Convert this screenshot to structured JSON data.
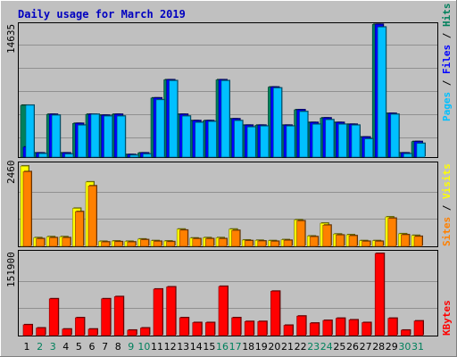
{
  "title": "Daily usage for March 2019",
  "colors": {
    "background": "#c0c0c0",
    "title": "#0000c0",
    "hits": "#00805c",
    "files": "#0000ff",
    "pages": "#00c0ff",
    "visits": "#ffff00",
    "sites": "#ff8000",
    "kbytes": "#ff0000",
    "weekend_day": "#00805c",
    "weekday_day": "#000000"
  },
  "panels": {
    "top": {
      "max_label": "14635"
    },
    "middle": {
      "max_label": "2460"
    },
    "bottom": {
      "max_label": "151900"
    }
  },
  "right_labels": {
    "top": [
      "Pages",
      "Files",
      "Hits"
    ],
    "middle": [
      "Sites",
      "Visits"
    ],
    "bottom": [
      "KBytes"
    ]
  },
  "chart_data": {
    "type": "bar",
    "title": "Daily usage for March 2019",
    "categories": [
      "1",
      "2",
      "3",
      "4",
      "5",
      "6",
      "7",
      "8",
      "9",
      "10",
      "11",
      "12",
      "13",
      "14",
      "15",
      "16",
      "17",
      "18",
      "19",
      "20",
      "21",
      "22",
      "23",
      "24",
      "25",
      "26",
      "27",
      "28",
      "29",
      "30",
      "31"
    ],
    "weekend_days": [
      "2",
      "3",
      "9",
      "10",
      "16",
      "17",
      "23",
      "24",
      "30",
      "31"
    ],
    "panels": [
      {
        "name": "top",
        "ymax": 14635,
        "series": [
          {
            "name": "Hits",
            "color": "#00805c",
            "values": [
              5700,
              450,
              4700,
              450,
              3700,
              4700,
              4600,
              4700,
              270,
              450,
              6500,
              8500,
              4700,
              4000,
              4000,
              8500,
              4200,
              3500,
              3500,
              7700,
              3500,
              5200,
              3800,
              4300,
              3800,
              3600,
              2200,
              14600,
              4800,
              450,
              1700
            ]
          },
          {
            "name": "Files",
            "color": "#0000ff",
            "values": [
              1100,
              450,
              4700,
              450,
              3700,
              4700,
              4600,
              4700,
              270,
              450,
              6500,
              8500,
              4700,
              4000,
              4000,
              8500,
              4200,
              3500,
              3500,
              7700,
              3500,
              5200,
              3800,
              4300,
              3800,
              3600,
              2200,
              14600,
              4800,
              450,
              1700
            ]
          },
          {
            "name": "Pages",
            "color": "#00c0ff",
            "values": [
              5700,
              370,
              4600,
              330,
              3500,
              4700,
              4500,
              4500,
              200,
              330,
              6300,
              8400,
              4500,
              3800,
              3900,
              8400,
              4000,
              3300,
              3400,
              7600,
              3400,
              5000,
              3600,
              4100,
              3600,
              3500,
              2000,
              14300,
              4700,
              350,
              1500
            ]
          }
        ]
      },
      {
        "name": "middle",
        "ymax": 2460,
        "series": [
          {
            "name": "Visits",
            "color": "#ffff00",
            "values": [
              2430,
              260,
              290,
              290,
              1150,
              1950,
              150,
              160,
              150,
              220,
              170,
              160,
              520,
              250,
              260,
              260,
              520,
              190,
              180,
              170,
              200,
              800,
              310,
              700,
              370,
              350,
              170,
              170,
              890,
              380,
              330
            ]
          },
          {
            "name": "Sites",
            "color": "#ff8000",
            "values": [
              2260,
              230,
              260,
              260,
              1050,
              1830,
              130,
              140,
              130,
              200,
              150,
              140,
              490,
              230,
              230,
              230,
              480,
              170,
              160,
              150,
              180,
              770,
              290,
              640,
              340,
              320,
              150,
              150,
              850,
              350,
              300
            ]
          }
        ]
      },
      {
        "name": "bottom",
        "ymax": 151900,
        "series": [
          {
            "name": "KBytes",
            "color": "#ff0000",
            "values": [
              20000,
              14000,
              68000,
              12000,
              33000,
              12000,
              68000,
              72000,
              10000,
              14000,
              86000,
              90000,
              33000,
              24000,
              24000,
              91000,
              33000,
              26000,
              26000,
              82000,
              19000,
              36000,
              23000,
              28000,
              32000,
              29000,
              24000,
              151900,
              32000,
              10000,
              27000
            ]
          }
        ]
      }
    ]
  }
}
